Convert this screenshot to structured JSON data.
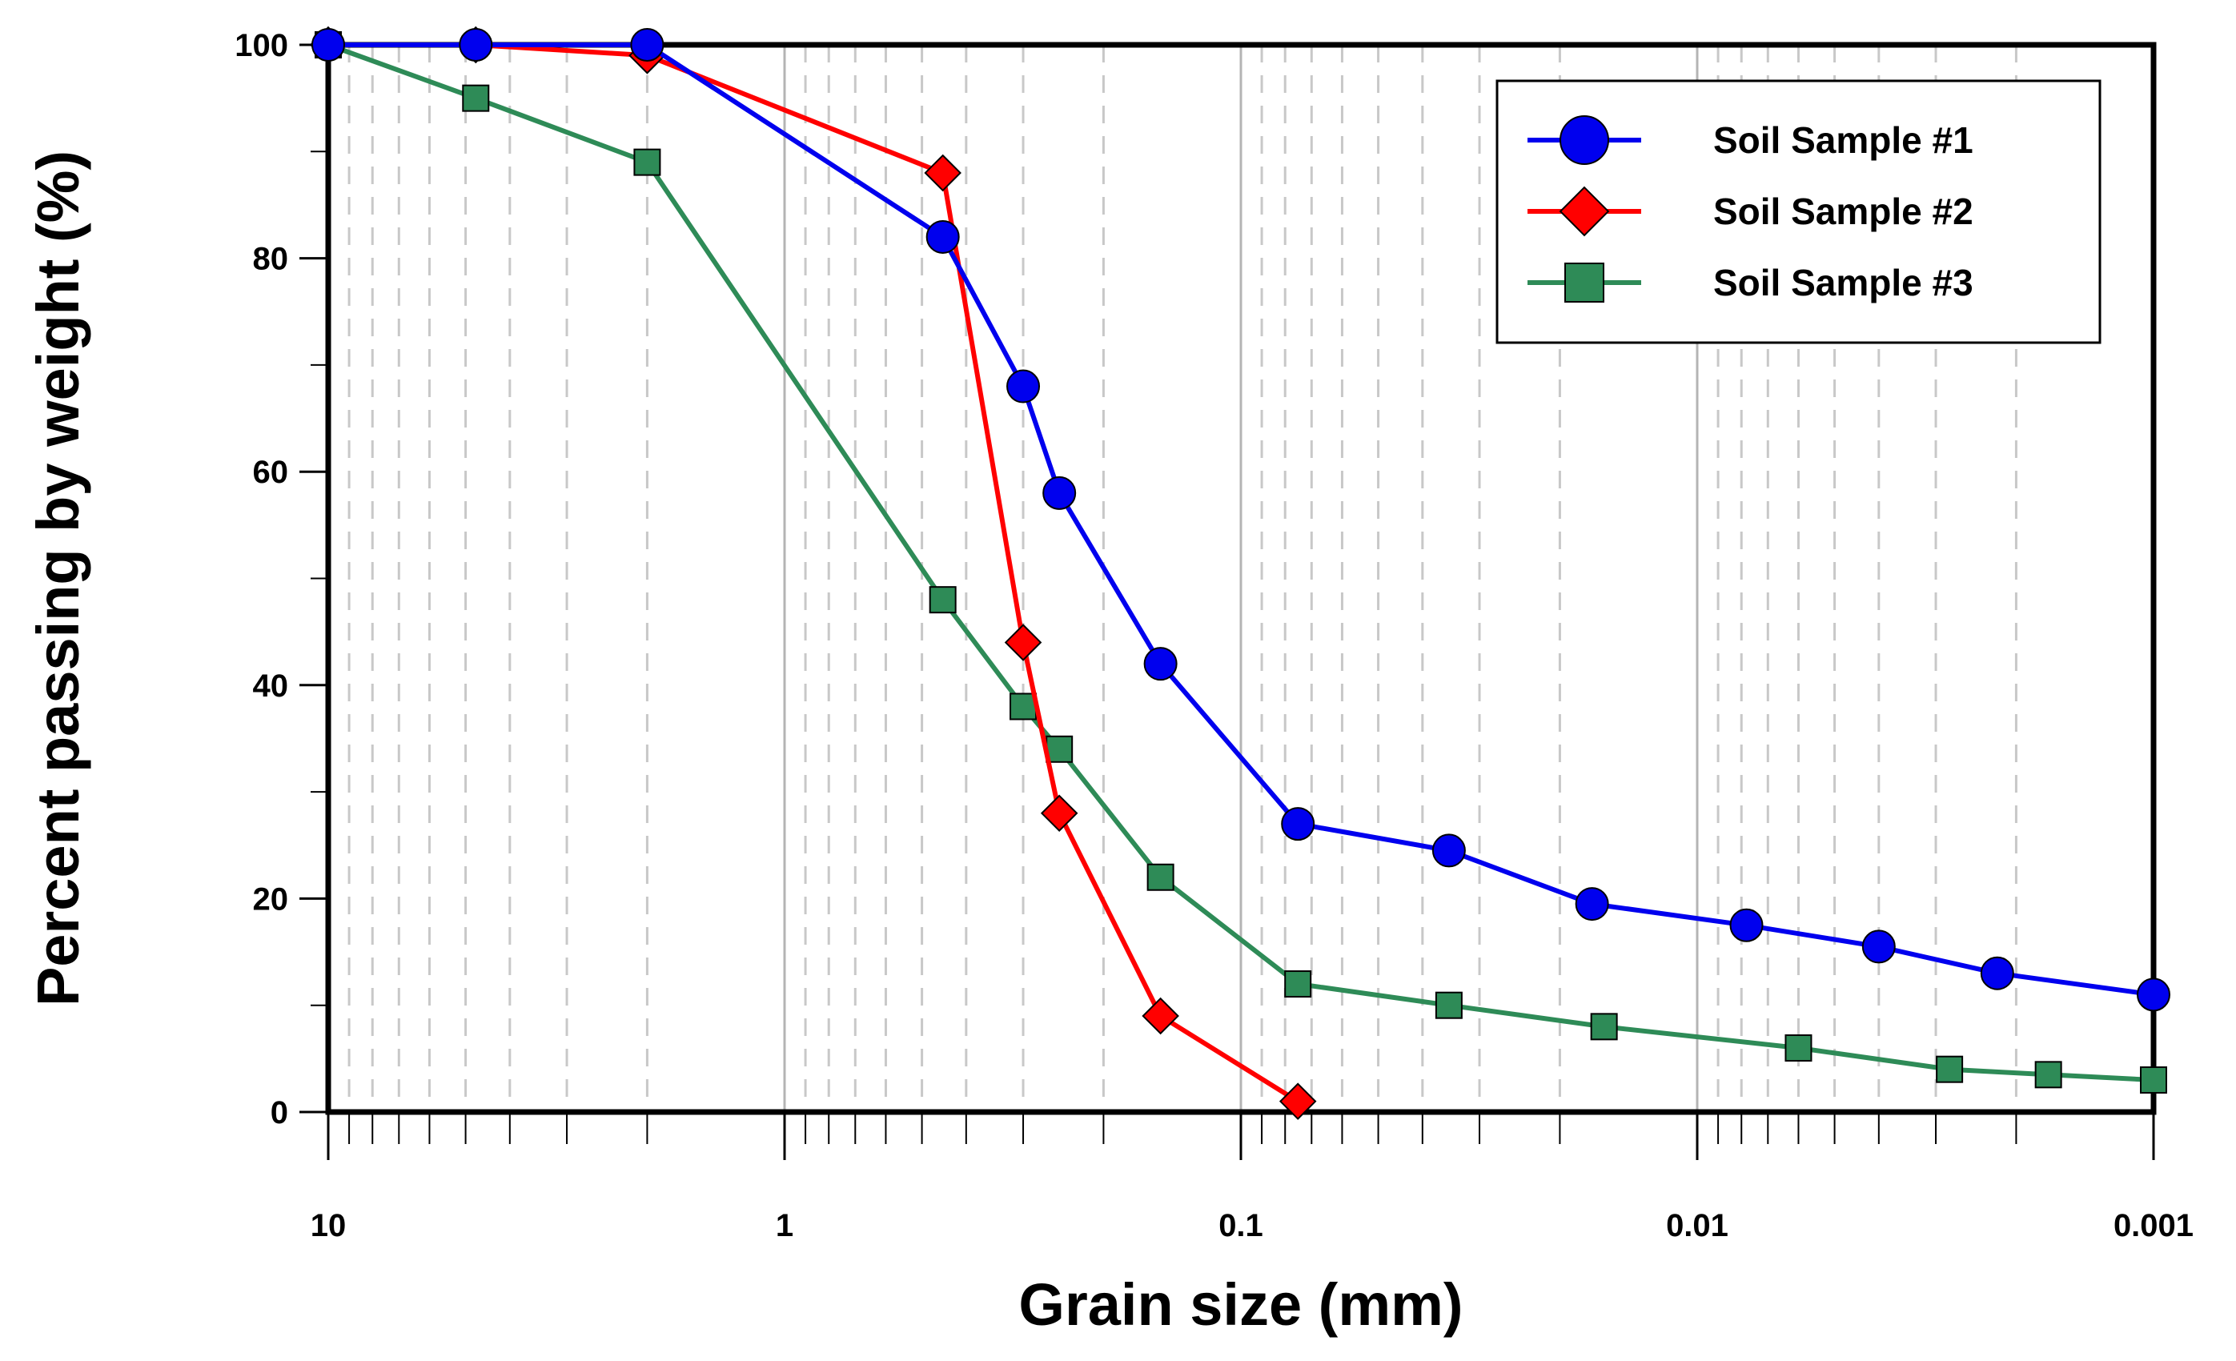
{
  "chart_data": {
    "type": "line",
    "title": "",
    "xlabel": "Grain size (mm)",
    "ylabel": "Percent passing by weight (%)",
    "xscale": "log",
    "x_reversed": true,
    "xlim": [
      10,
      0.001
    ],
    "ylim": [
      0,
      100
    ],
    "grid": true,
    "legend_position": "top-right",
    "x_tick_labels": [
      {
        "value": 10,
        "label": "10"
      },
      {
        "value": 1,
        "label": "1"
      },
      {
        "value": 0.1,
        "label": "0.1"
      },
      {
        "value": 0.01,
        "label": "0.01"
      },
      {
        "value": 0.001,
        "label": "0.001"
      }
    ],
    "y_tick_labels": [
      {
        "value": 0,
        "label": "0"
      },
      {
        "value": 20,
        "label": "20"
      },
      {
        "value": 40,
        "label": "40"
      },
      {
        "value": 60,
        "label": "60"
      },
      {
        "value": 80,
        "label": "80"
      },
      {
        "value": 100,
        "label": "100"
      }
    ],
    "series": [
      {
        "name": "Soil Sample #1",
        "color": "#0000ee",
        "marker": "circle",
        "x": [
          10,
          4.75,
          2.0,
          0.45,
          0.3,
          0.25,
          0.15,
          0.075,
          0.035,
          0.017,
          0.0078,
          0.004,
          0.0022,
          0.001
        ],
        "y": [
          100,
          100,
          100,
          82,
          68,
          58,
          42,
          27,
          24.5,
          19.5,
          17.5,
          15.5,
          13,
          11
        ]
      },
      {
        "name": "Soil Sample #2",
        "color": "#ff0000",
        "marker": "diamond",
        "x": [
          10,
          4.75,
          2.0,
          0.45,
          0.3,
          0.25,
          0.15,
          0.075
        ],
        "y": [
          100,
          100,
          99,
          88,
          44,
          28,
          9,
          1
        ]
      },
      {
        "name": "Soil Sample #3",
        "color": "#2e8b57",
        "marker": "square",
        "x": [
          10,
          4.75,
          2.0,
          0.45,
          0.3,
          0.25,
          0.15,
          0.075,
          0.035,
          0.016,
          0.006,
          0.0028,
          0.0017,
          0.001
        ],
        "y": [
          100,
          95,
          89,
          48,
          38,
          34,
          22,
          12,
          10,
          8,
          6,
          4,
          3.5,
          3
        ]
      }
    ]
  }
}
